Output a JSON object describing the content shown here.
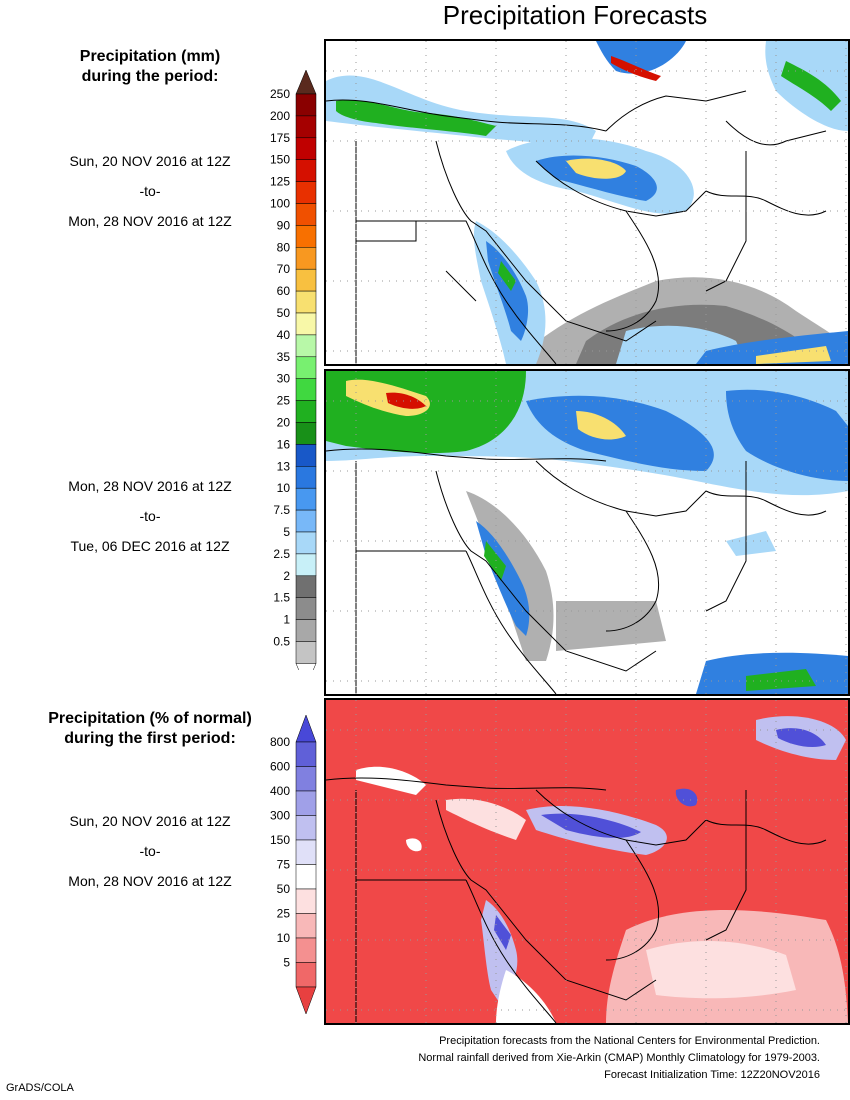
{
  "title": "Precipitation Forecasts",
  "legend_mm": {
    "header_line1": "Precipitation (mm)",
    "header_line2": "during the period:",
    "levels": [
      "250",
      "200",
      "175",
      "150",
      "125",
      "100",
      "90",
      "80",
      "70",
      "60",
      "50",
      "40",
      "35",
      "30",
      "25",
      "20",
      "16",
      "13",
      "10",
      "7.5",
      "5",
      "2.5",
      "2",
      "1.5",
      "1",
      "0.5"
    ],
    "colors": {
      "top_arrow": "#5a2a1e",
      "bins": [
        "#8a0000",
        "#a50000",
        "#c00000",
        "#d51000",
        "#e83000",
        "#f05000",
        "#f87000",
        "#f89820",
        "#f8c040",
        "#f8e070",
        "#f8f8a8",
        "#b8f8a8",
        "#78f070",
        "#40d840",
        "#20b020",
        "#189018",
        "#1858c8",
        "#2a78e0",
        "#4898f0",
        "#78b8f8",
        "#a8d8f8",
        "#c8f0f8",
        "#707070",
        "#8c8c8c",
        "#a8a8a8",
        "#c4c4c4"
      ],
      "bottom_arrow": "#ffffff"
    }
  },
  "period1": {
    "from": "Sun, 20 NOV 2016 at 12Z",
    "sep": "-to-",
    "to": "Mon, 28 NOV 2016 at 12Z"
  },
  "period2": {
    "from": "Mon, 28 NOV 2016 at 12Z",
    "sep": "-to-",
    "to": "Tue, 06 DEC 2016 at 12Z"
  },
  "legend_pct": {
    "header_line1": "Precipitation (% of normal)",
    "header_line2": "during the first period:",
    "levels": [
      "800",
      "600",
      "400",
      "300",
      "150",
      "75",
      "50",
      "25",
      "10",
      "5"
    ],
    "colors": {
      "top_arrow": "#4848d8",
      "bins": [
        "#6060d8",
        "#8080e0",
        "#a0a0e8",
        "#c0c0f0",
        "#e0e0f8",
        "#ffffff",
        "#fde0e0",
        "#f8b8b8",
        "#f49090",
        "#f06868"
      ],
      "bottom_arrow": "#e84040"
    }
  },
  "period3": {
    "from": "Sun, 20 NOV 2016 at 12Z",
    "sep": "-to-",
    "to": "Mon, 28 NOV 2016 at 12Z"
  },
  "footer": {
    "line1": "Precipitation forecasts from the National Centers for Environmental Prediction.",
    "line2": "Normal rainfall derived from Xie-Arkin (CMAP) Monthly Climatology for 1979-2003.",
    "line3": "Forecast Initialization Time: 12Z20NOV2016"
  },
  "credit": "GrADS/COLA",
  "map_colors": {
    "land": "#ffffff",
    "coast": "#000000",
    "light_gray": "#b0b0b0",
    "dark_gray": "#7c7c7c",
    "light_blue": "#a8d8f8",
    "blue": "#3080e0",
    "dark_blue": "#1858c8",
    "green": "#20b020",
    "lime": "#60e060",
    "yellow": "#f8e070",
    "orange": "#f89820",
    "red": "#d51000",
    "pct_red": "#f04848",
    "pct_pink": "#f8b8b8",
    "pct_lavender": "#c0c0f0",
    "pct_purple": "#5050d8"
  }
}
